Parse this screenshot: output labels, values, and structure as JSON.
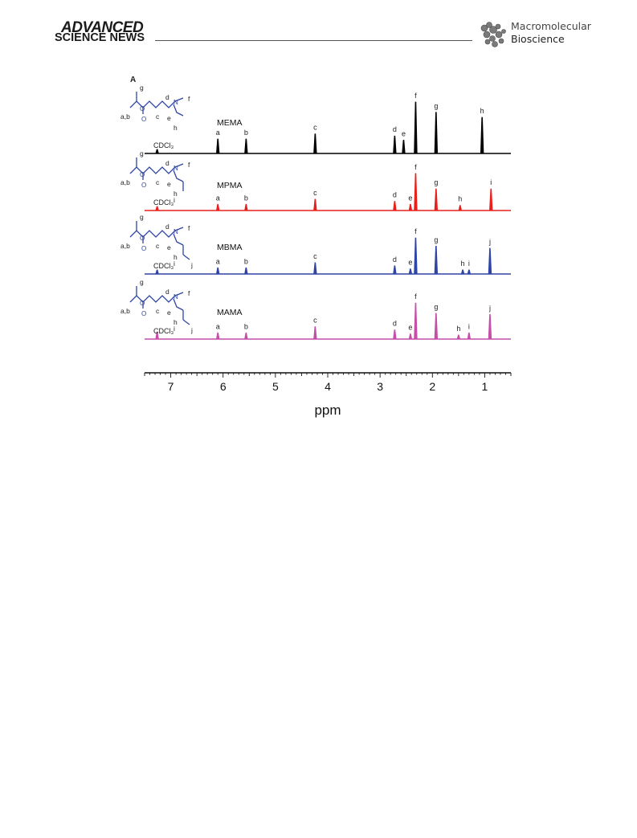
{
  "header": {
    "brand_line1": "ADVANCED",
    "brand_line2": "SCIENCE NEWS",
    "journal_line1": "Macromolecular",
    "journal_line2": "Bioscience"
  },
  "chart_data": {
    "type": "line",
    "panel_label": "A",
    "xlabel": "ppm",
    "xlim": [
      7.5,
      0.5
    ],
    "x_ticks": [
      "7",
      "6",
      "5",
      "4",
      "3",
      "2",
      "1"
    ],
    "solvent_label": "CDCl₃",
    "series": [
      {
        "name": "MEMA",
        "color": "#000000",
        "structure_labels": [
          "g",
          "a,b",
          "c",
          "d",
          "e",
          "f",
          "h"
        ],
        "peaks": [
          {
            "ppm": 7.26,
            "height": 0.08,
            "label": ""
          },
          {
            "ppm": 6.1,
            "height": 0.28,
            "label": "a"
          },
          {
            "ppm": 5.56,
            "height": 0.28,
            "label": "b"
          },
          {
            "ppm": 4.24,
            "height": 0.38,
            "label": "c"
          },
          {
            "ppm": 2.72,
            "height": 0.34,
            "label": "d"
          },
          {
            "ppm": 2.55,
            "height": 0.26,
            "label": "e"
          },
          {
            "ppm": 2.32,
            "height": 1.0,
            "label": "f"
          },
          {
            "ppm": 1.93,
            "height": 0.8,
            "label": "g"
          },
          {
            "ppm": 1.05,
            "height": 0.7,
            "label": "h"
          }
        ]
      },
      {
        "name": "MPMA",
        "color": "#e8211d",
        "structure_labels": [
          "g",
          "a,b",
          "c",
          "d",
          "e",
          "f",
          "h",
          "i"
        ],
        "peaks": [
          {
            "ppm": 7.26,
            "height": 0.08,
            "label": ""
          },
          {
            "ppm": 6.1,
            "height": 0.12,
            "label": "a"
          },
          {
            "ppm": 5.56,
            "height": 0.12,
            "label": "b"
          },
          {
            "ppm": 4.24,
            "height": 0.22,
            "label": "c"
          },
          {
            "ppm": 2.72,
            "height": 0.18,
            "label": "d"
          },
          {
            "ppm": 2.42,
            "height": 0.12,
            "label": "e"
          },
          {
            "ppm": 2.32,
            "height": 0.72,
            "label": "f"
          },
          {
            "ppm": 1.93,
            "height": 0.42,
            "label": "g"
          },
          {
            "ppm": 1.47,
            "height": 0.1,
            "label": "h"
          },
          {
            "ppm": 0.88,
            "height": 0.42,
            "label": "i"
          }
        ]
      },
      {
        "name": "MBMA",
        "color": "#2e45a6",
        "structure_labels": [
          "g",
          "a,b",
          "c",
          "d",
          "e",
          "f",
          "h",
          "i",
          "j"
        ],
        "peaks": [
          {
            "ppm": 7.26,
            "height": 0.08,
            "label": ""
          },
          {
            "ppm": 6.1,
            "height": 0.12,
            "label": "a"
          },
          {
            "ppm": 5.56,
            "height": 0.12,
            "label": "b"
          },
          {
            "ppm": 4.24,
            "height": 0.22,
            "label": "c"
          },
          {
            "ppm": 2.72,
            "height": 0.16,
            "label": "d"
          },
          {
            "ppm": 2.42,
            "height": 0.1,
            "label": "e"
          },
          {
            "ppm": 2.32,
            "height": 0.7,
            "label": "f"
          },
          {
            "ppm": 1.93,
            "height": 0.54,
            "label": "g"
          },
          {
            "ppm": 1.42,
            "height": 0.08,
            "label": "h"
          },
          {
            "ppm": 1.3,
            "height": 0.08,
            "label": "i"
          },
          {
            "ppm": 0.9,
            "height": 0.5,
            "label": "j"
          }
        ]
      },
      {
        "name": "MAMA",
        "color": "#c44fa8",
        "structure_labels": [
          "g",
          "a,b",
          "c",
          "d",
          "e",
          "f",
          "h",
          "i",
          "j"
        ],
        "peaks": [
          {
            "ppm": 7.26,
            "height": 0.14,
            "label": ""
          },
          {
            "ppm": 6.1,
            "height": 0.12,
            "label": "a"
          },
          {
            "ppm": 5.56,
            "height": 0.12,
            "label": "b"
          },
          {
            "ppm": 4.24,
            "height": 0.24,
            "label": "c"
          },
          {
            "ppm": 2.72,
            "height": 0.18,
            "label": "d"
          },
          {
            "ppm": 2.42,
            "height": 0.1,
            "label": "e"
          },
          {
            "ppm": 2.32,
            "height": 0.7,
            "label": "f"
          },
          {
            "ppm": 1.93,
            "height": 0.5,
            "label": "g"
          },
          {
            "ppm": 1.5,
            "height": 0.08,
            "label": "h"
          },
          {
            "ppm": 1.3,
            "height": 0.12,
            "label": "i"
          },
          {
            "ppm": 0.9,
            "height": 0.48,
            "label": "j"
          }
        ]
      }
    ]
  }
}
